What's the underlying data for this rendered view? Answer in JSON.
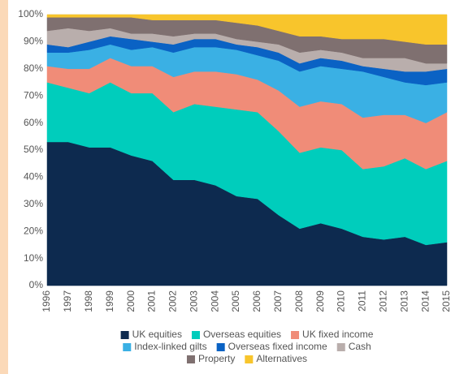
{
  "chart_data": {
    "type": "area",
    "stacked": true,
    "categories": [
      "1996",
      "1997",
      "1998",
      "1999",
      "2000",
      "2001",
      "2002",
      "2003",
      "2004",
      "2005",
      "2006",
      "2007",
      "2008",
      "2009",
      "2010",
      "2011",
      "2012",
      "2013",
      "2014",
      "2015"
    ],
    "series": [
      {
        "name": "UK equities",
        "color": "#0d2a4f",
        "values": [
          53,
          53,
          51,
          51,
          48,
          46,
          39,
          39,
          37,
          33,
          32,
          26,
          21,
          23,
          21,
          18,
          17,
          18,
          15,
          16
        ]
      },
      {
        "name": "Overseas equities",
        "color": "#00cdbc",
        "values": [
          22,
          20,
          20,
          24,
          23,
          25,
          25,
          28,
          29,
          32,
          32,
          31,
          28,
          28,
          29,
          25,
          27,
          29,
          28,
          30
        ]
      },
      {
        "name": "UK fixed income",
        "color": "#f08c78",
        "values": [
          6,
          7,
          9,
          9,
          10,
          10,
          13,
          12,
          13,
          13,
          12,
          15,
          17,
          17,
          17,
          19,
          19,
          16,
          17,
          18
        ]
      },
      {
        "name": "Index-linked gilts",
        "color": "#3ab0e4",
        "values": [
          5,
          6,
          7,
          5,
          6,
          7,
          9,
          9,
          9,
          9,
          9,
          11,
          13,
          13,
          13,
          17,
          14,
          12,
          14,
          11
        ]
      },
      {
        "name": "Overseas fixed income",
        "color": "#0a62c4",
        "values": [
          3,
          2,
          3,
          3,
          4,
          2,
          3,
          3,
          3,
          2,
          3,
          3,
          3,
          3,
          3,
          2,
          3,
          4,
          5,
          5
        ]
      },
      {
        "name": "Cash",
        "color": "#b9aeac",
        "values": [
          5,
          7,
          4,
          3,
          2,
          3,
          3,
          2,
          2,
          2,
          2,
          3,
          4,
          3,
          3,
          3,
          4,
          5,
          3,
          2
        ]
      },
      {
        "name": "Property",
        "color": "#7f7070",
        "values": [
          5,
          4,
          5,
          4,
          6,
          5,
          6,
          5,
          5,
          6,
          6,
          5,
          6,
          5,
          5,
          7,
          7,
          6,
          7,
          7
        ]
      },
      {
        "name": "Alternatives",
        "color": "#f8c52c",
        "values": [
          1,
          1,
          1,
          1,
          1,
          2,
          2,
          2,
          2,
          3,
          4,
          6,
          8,
          8,
          9,
          9,
          9,
          10,
          11,
          11
        ]
      }
    ],
    "ylim": [
      0,
      100
    ],
    "yticks": [
      {
        "value": 0,
        "label": "0%"
      },
      {
        "value": 10,
        "label": "10%"
      },
      {
        "value": 20,
        "label": "20%"
      },
      {
        "value": 30,
        "label": "30%"
      },
      {
        "value": 40,
        "label": "40%"
      },
      {
        "value": 50,
        "label": "50%"
      },
      {
        "value": 60,
        "label": "60%"
      },
      {
        "value": 70,
        "label": "70%"
      },
      {
        "value": 80,
        "label": "80%"
      },
      {
        "value": 90,
        "label": "90%"
      },
      {
        "value": 100,
        "label": "100%"
      }
    ],
    "grid": true,
    "legend": "bottom"
  }
}
